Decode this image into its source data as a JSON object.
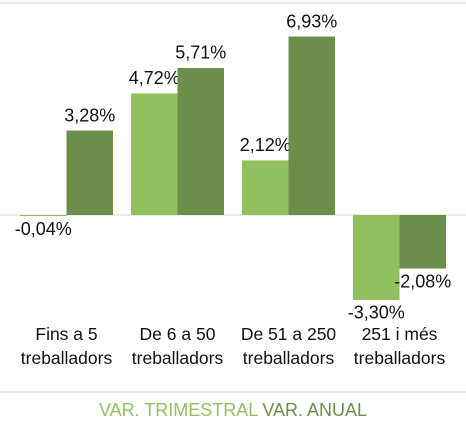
{
  "chart_data": {
    "type": "bar",
    "categories": [
      "Fins a 5 treballadors",
      "De 6 a 50 treballadors",
      "De 51 a 250 treballadors",
      "251 i més treballadors"
    ],
    "series": [
      {
        "name": "VAR. TRIMESTRAL",
        "color": "#92c05f",
        "values": [
          -0.04,
          4.72,
          2.12,
          -3.3
        ],
        "value_labels": [
          "-0,04%",
          "4,72%",
          "2,12%",
          "-3,30%"
        ]
      },
      {
        "name": "VAR. ANUAL",
        "color": "#6b8f4a",
        "values": [
          3.28,
          5.71,
          6.93,
          -2.08
        ],
        "value_labels": [
          "3,28%",
          "5,71%",
          "6,93%",
          "-2,08%"
        ]
      }
    ],
    "ylim": [
      -4,
      8
    ],
    "legend": "bottom"
  }
}
